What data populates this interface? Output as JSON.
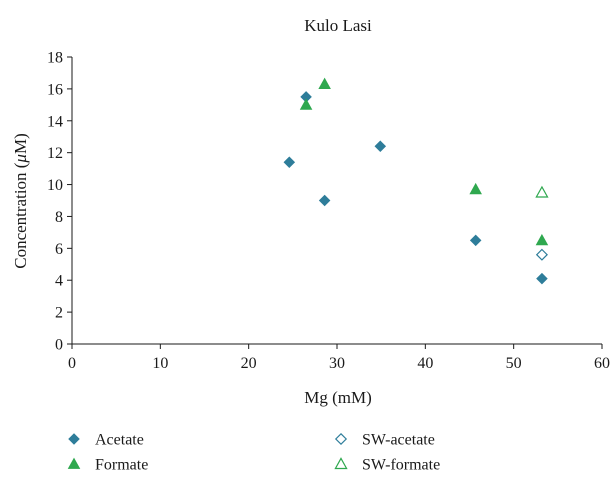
{
  "chart_data": {
    "type": "scatter",
    "title": "Kulo Lasi",
    "xlabel": "Mg (mM)",
    "ylabel": "Concentration (μM)",
    "ylabel_parts": {
      "prefix": "Concentration (",
      "mu": "μ",
      "suffix": "M)"
    },
    "xlim": [
      0,
      60
    ],
    "ylim": [
      0,
      18
    ],
    "xticks": [
      0,
      10,
      20,
      30,
      40,
      50,
      60
    ],
    "yticks": [
      0,
      2,
      4,
      6,
      8,
      10,
      12,
      14,
      16,
      18
    ],
    "xtick_labels": [
      "0",
      "10",
      "20",
      "30",
      "40",
      "50",
      "60"
    ],
    "ytick_labels": [
      "0",
      "2",
      "4",
      "6",
      "8",
      "10",
      "12",
      "14",
      "16",
      "18"
    ],
    "grid": false,
    "legend_position": "bottom",
    "series": [
      {
        "name": "Acetate",
        "marker": "diamond-filled",
        "color": "#2e7d9a",
        "points": [
          [
            24.6,
            11.4
          ],
          [
            26.5,
            15.5
          ],
          [
            28.6,
            9.0
          ],
          [
            34.9,
            12.4
          ],
          [
            45.7,
            6.5
          ],
          [
            53.2,
            4.1
          ]
        ]
      },
      {
        "name": "Formate",
        "marker": "triangle-filled",
        "color": "#2fa84f",
        "points": [
          [
            26.5,
            15.0
          ],
          [
            28.6,
            16.3
          ],
          [
            45.7,
            9.7
          ],
          [
            53.2,
            6.5
          ]
        ]
      },
      {
        "name": "SW-acetate",
        "marker": "diamond-open",
        "color": "#2e7d9a",
        "points": [
          [
            53.2,
            5.6
          ]
        ]
      },
      {
        "name": "SW-formate",
        "marker": "triangle-open",
        "color": "#2fa84f",
        "points": [
          [
            53.2,
            9.5
          ]
        ]
      }
    ]
  }
}
